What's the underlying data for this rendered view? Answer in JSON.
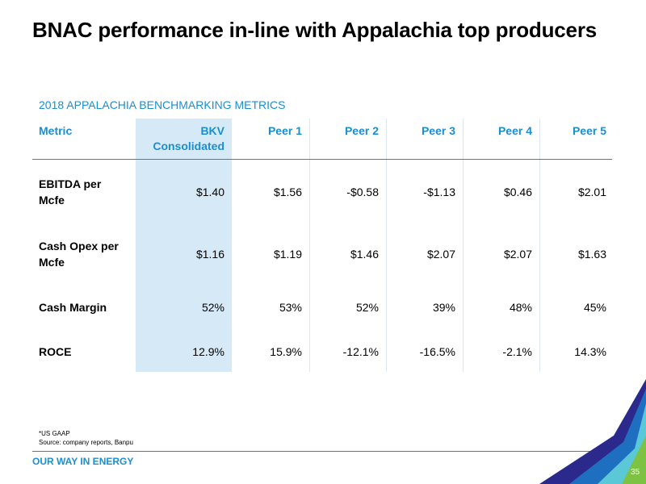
{
  "slide": {
    "title": "BNAC performance in-line with Appalachia top producers",
    "section_title": "2018 APPALACHIA BENCHMARKING METRICS",
    "page_number": "35"
  },
  "table": {
    "headers": {
      "metric": "Metric",
      "bkv_line1": "BKV",
      "bkv_line2": "Consolidated",
      "peer1": "Peer 1",
      "peer2": "Peer 2",
      "peer3": "Peer 3",
      "peer4": "Peer 4",
      "peer5": "Peer 5"
    },
    "rows": [
      {
        "label_line1": "EBITDA per",
        "label_line2": "Mcfe",
        "values": [
          "$1.40",
          "$1.56",
          "-$0.58",
          "-$1.13",
          "$0.46",
          "$2.01"
        ]
      },
      {
        "label_line1": "Cash Opex per",
        "label_line2": "Mcfe",
        "values": [
          "$1.16",
          "$1.19",
          "$1.46",
          "$2.07",
          "$2.07",
          "$1.63"
        ]
      },
      {
        "label_line1": "Cash Margin",
        "label_line2": "",
        "values": [
          "52%",
          "53%",
          "52%",
          "39%",
          "48%",
          "45%"
        ]
      },
      {
        "label_line1": "ROCE",
        "label_line2": "",
        "values": [
          "12.9%",
          "15.9%",
          "-12.1%",
          "-16.5%",
          "-2.1%",
          "14.3%"
        ]
      }
    ]
  },
  "footer": {
    "note": "*US GAAP",
    "source": "Source: company reports, Banpu",
    "tagline": "OUR WAY IN ENERGY"
  },
  "colors": {
    "accent": "#1a8fd0",
    "highlight": "#d6e9f6",
    "corner_dark": "#2b2a8c",
    "corner_mid": "#1e6fc0",
    "corner_light": "#5bc8d8",
    "corner_green": "#7dc242"
  }
}
